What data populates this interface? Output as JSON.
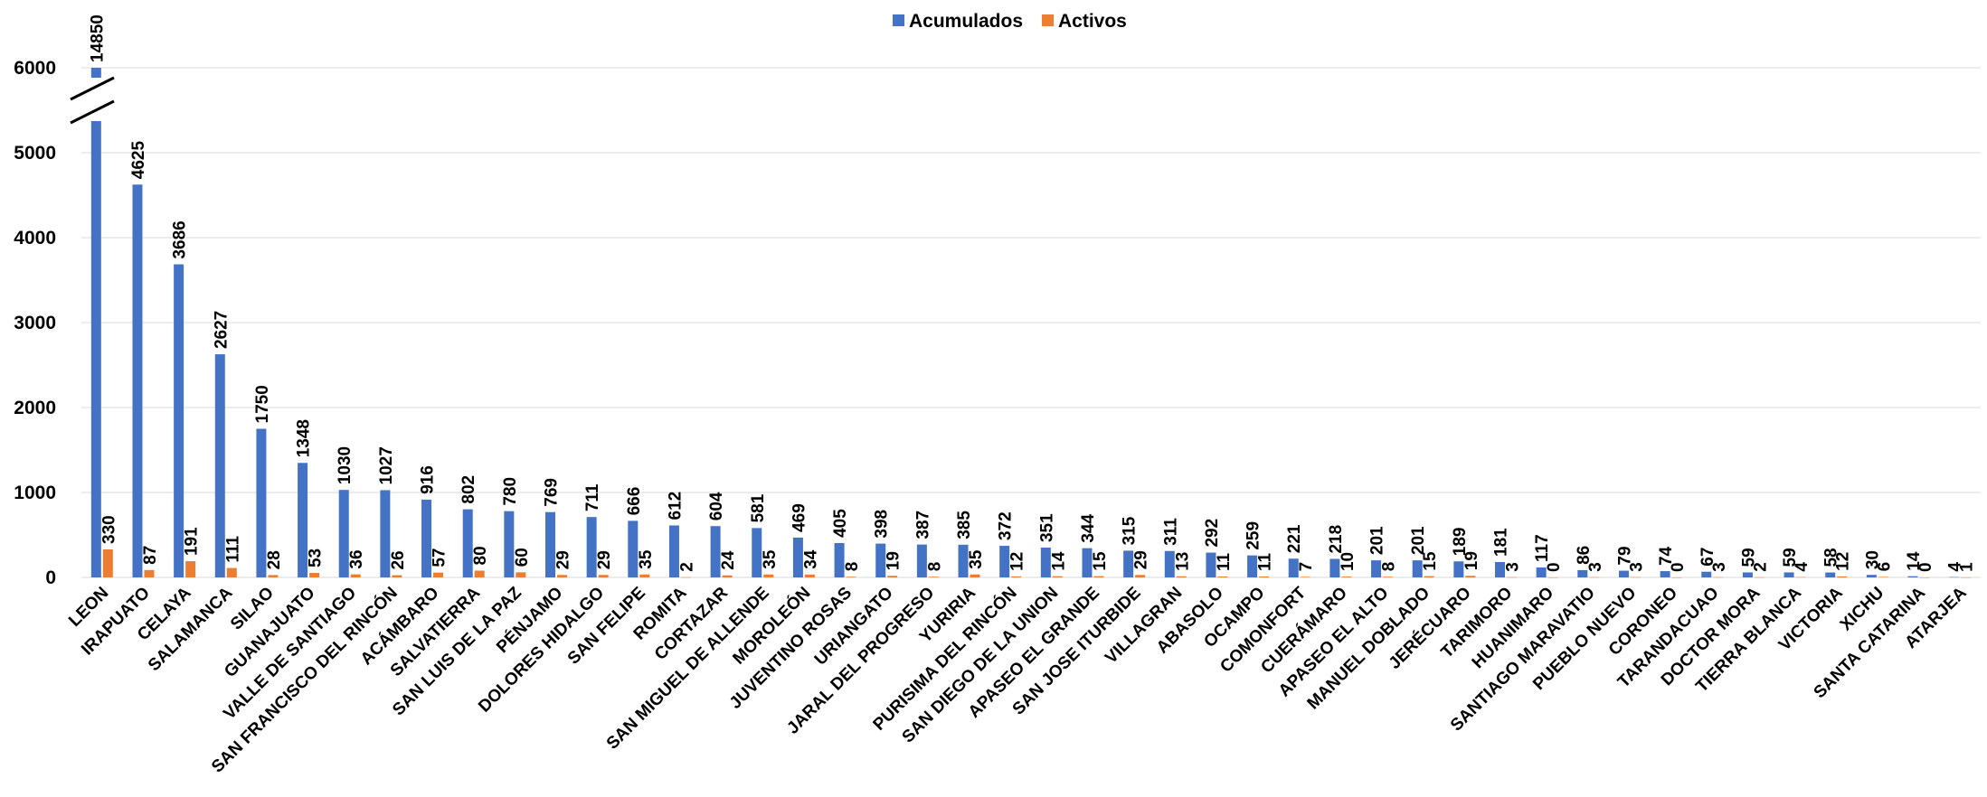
{
  "chart_data": {
    "type": "bar",
    "categories": [
      "LEON",
      "IRAPUATO",
      "CELAYA",
      "SALAMANCA",
      "SILAO",
      "GUANAJUATO",
      "VALLE DE SANTIAGO",
      "SAN FRANCISCO DEL RINCÓN",
      "ACÁMBARO",
      "SALVATIERRA",
      "SAN LUIS DE LA PAZ",
      "PÉNJAMO",
      "DOLORES HIDALGO",
      "SAN FELIPE",
      "ROMITA",
      "CORTAZAR",
      "SAN MIGUEL DE ALLENDE",
      "MOROLEÓN",
      "JUVENTINO ROSAS",
      "URIANGATO",
      "JARAL DEL PROGRESO",
      "YURIRIA",
      "PURISIMA DEL RINCÓN",
      "SAN DIEGO DE LA UNION",
      "APASEO EL GRANDE",
      "SAN JOSE ITURBIDE",
      "VILLAGRAN",
      "ABASOLO",
      "OCAMPO",
      "COMONFORT",
      "CUERÁMARO",
      "APASEO EL ALTO",
      "MANUEL DOBLADO",
      "JERÉCUARO",
      "TARIMORO",
      "HUANIMARO",
      "SANTIAGO MARAVATIO",
      "PUEBLO NUEVO",
      "CORONEO",
      "TARANDACUAO",
      "DOCTOR MORA",
      "TIERRA BLANCA",
      "VICTORIA",
      "XICHU",
      "SANTA CATARINA",
      "ATARJEA"
    ],
    "series": [
      {
        "name": "Acumulados",
        "color": "#4472c4",
        "values": [
          14850,
          4625,
          3686,
          2627,
          1750,
          1348,
          1030,
          1027,
          916,
          802,
          780,
          769,
          711,
          666,
          612,
          604,
          581,
          469,
          405,
          398,
          387,
          385,
          372,
          351,
          344,
          315,
          311,
          292,
          259,
          221,
          218,
          201,
          201,
          189,
          181,
          117,
          86,
          79,
          74,
          67,
          59,
          59,
          58,
          30,
          14,
          4
        ]
      },
      {
        "name": "Activos",
        "color": "#ed7d31",
        "values": [
          330,
          87,
          191,
          111,
          28,
          53,
          36,
          26,
          57,
          80,
          60,
          29,
          29,
          35,
          2,
          24,
          35,
          34,
          8,
          19,
          8,
          35,
          12,
          14,
          15,
          29,
          13,
          11,
          11,
          7,
          10,
          8,
          15,
          19,
          3,
          0,
          3,
          3,
          0,
          3,
          2,
          4,
          12,
          6,
          0,
          1
        ]
      }
    ],
    "yticks": [
      "0",
      "1000",
      "2000",
      "3000",
      "4000",
      "5000",
      "6000"
    ],
    "ylim": [
      0,
      6000
    ],
    "axis_break": true,
    "grid": true,
    "legend_position": "top-center"
  }
}
